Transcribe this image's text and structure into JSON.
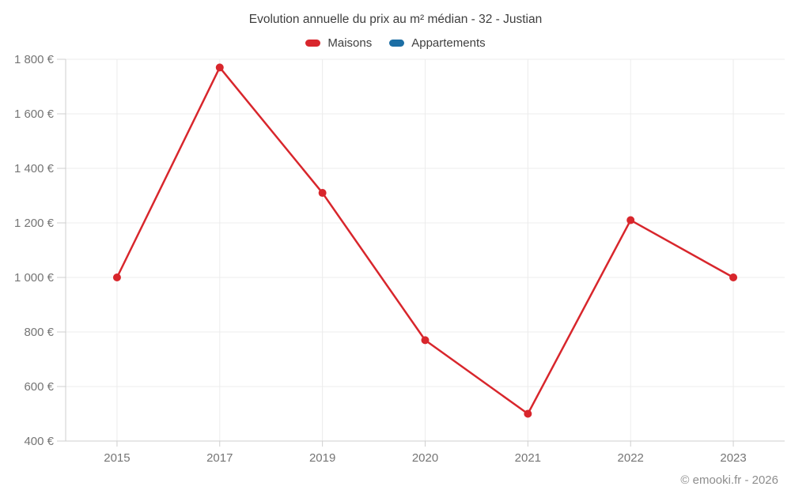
{
  "header": {
    "title": "Evolution annuelle du prix au m² médian - 32 - Justian"
  },
  "footer": {
    "copyright": "© emooki.fr - 2026"
  },
  "colors": {
    "maisons": "#d8262c",
    "appartements": "#1c6ea4",
    "gridline": "#ececec",
    "axis_line": "#cfcfcf",
    "tick_text": "#757575",
    "title_text": "#3f3f3f",
    "footer_text": "#8d8d8d"
  },
  "chart_data": {
    "type": "line",
    "title": "Evolution annuelle du prix au m² médian - 32 - Justian",
    "categories": [
      "2015",
      "2017",
      "2019",
      "2020",
      "2021",
      "2022",
      "2023"
    ],
    "series": [
      {
        "name": "Maisons",
        "color": "#d8262c",
        "values": [
          1000,
          1770,
          1310,
          770,
          500,
          1210,
          1000
        ]
      },
      {
        "name": "Appartements",
        "color": "#1c6ea4",
        "values": []
      }
    ],
    "xlabel": "",
    "ylabel": "",
    "ylim": [
      400,
      1800
    ],
    "ytick_step": 200,
    "ytick_labels": [
      "400 €",
      "600 €",
      "800 €",
      "1 000 €",
      "1 200 €",
      "1 400 €",
      "1 600 €",
      "1 800 €"
    ],
    "grid": true,
    "legend_position": "top",
    "marker": "circle",
    "currency": "€"
  }
}
